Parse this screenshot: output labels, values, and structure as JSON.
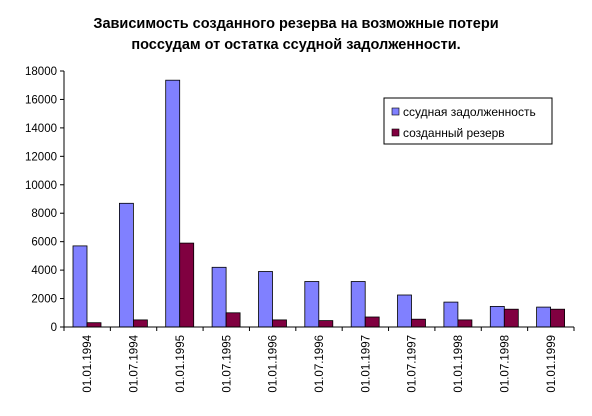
{
  "chart_data": {
    "type": "bar",
    "title_lines": [
      "Зависимость созданного резерва на возможные потери",
      "поссудам от остатка ссудной задолженности."
    ],
    "categories": [
      "01.01.1994",
      "01.07.1994",
      "01.01.1995",
      "01.07.1995",
      "01.01.1996",
      "01.07.1996",
      "01.01.1997",
      "01.07.1997",
      "01.01.1998",
      "01.07.1998",
      "01.01.1999"
    ],
    "series": [
      {
        "name": "ссудная задолженность",
        "color": "#8080ff",
        "values": [
          5700,
          8700,
          17350,
          4200,
          3900,
          3200,
          3200,
          2250,
          1750,
          1450,
          1400
        ]
      },
      {
        "name": "созданный резерв",
        "color": "#800040",
        "values": [
          300,
          500,
          5900,
          1000,
          500,
          450,
          700,
          550,
          500,
          1250,
          1250
        ]
      }
    ],
    "yticks": [
      0,
      2000,
      4000,
      6000,
      8000,
      10000,
      12000,
      14000,
      16000,
      18000
    ],
    "ylim": [
      0,
      18000
    ],
    "grid": false,
    "legend_position": "top-right"
  }
}
